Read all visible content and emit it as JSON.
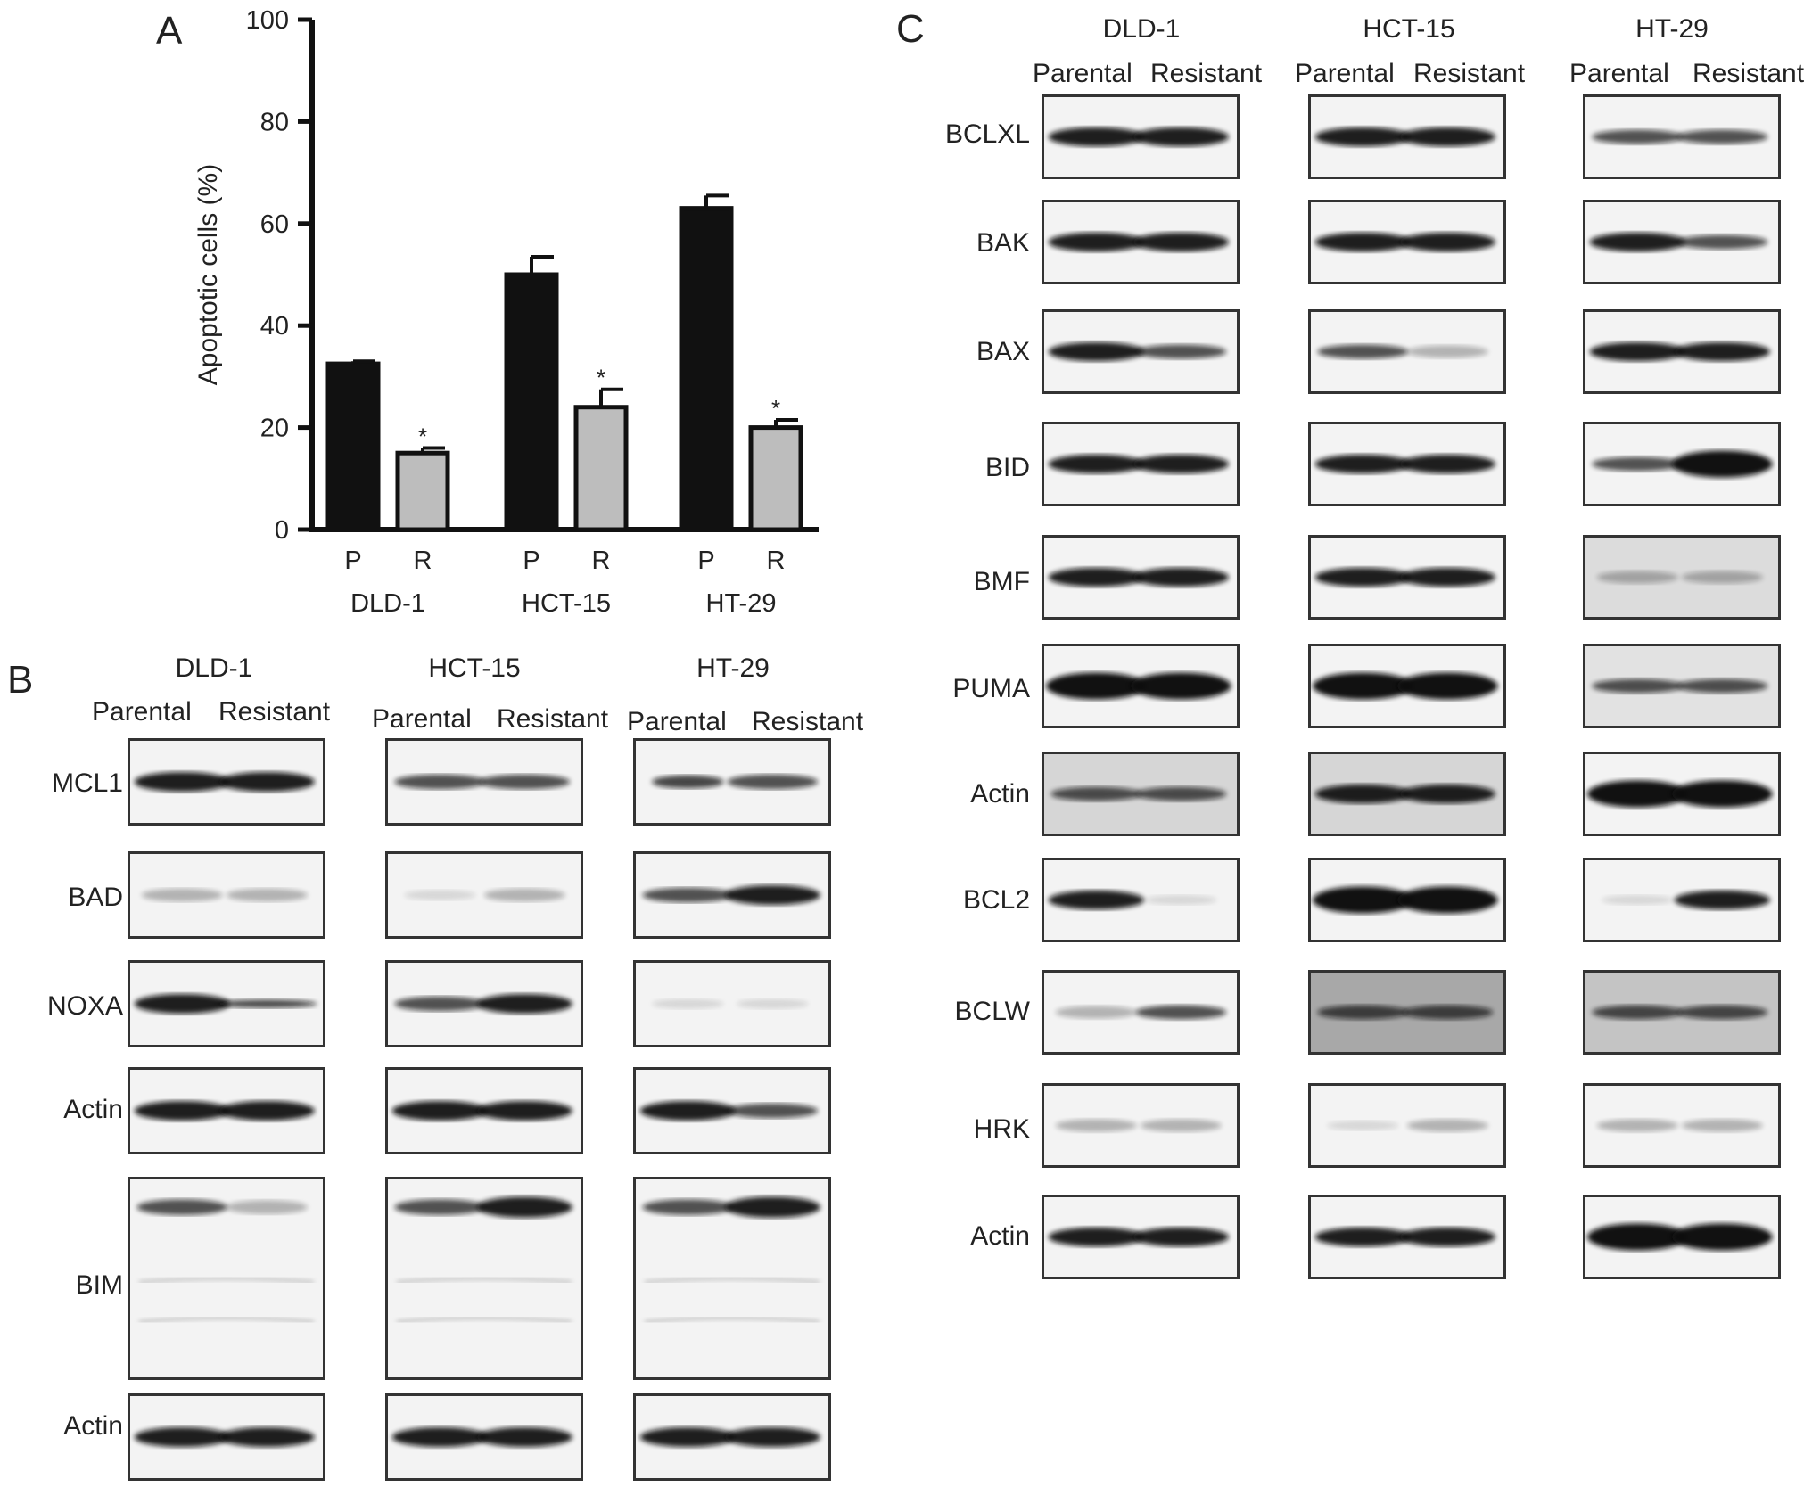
{
  "panels": {
    "a": "A",
    "b": "B",
    "c": "C"
  },
  "chart_data": {
    "type": "bar",
    "ylabel": "Apoptotic cells (%)",
    "ylim": [
      0,
      100
    ],
    "yticks": [
      "0",
      "20",
      "40",
      "60",
      "80",
      "100"
    ],
    "groups": [
      "DLD-1",
      "HCT-15",
      "HT-29"
    ],
    "categories": [
      "P",
      "R",
      "P",
      "R",
      "P",
      "R"
    ],
    "values": [
      32.5,
      15,
      50,
      24,
      63,
      20
    ],
    "errors": [
      0.5,
      1.0,
      3.5,
      3.5,
      2.5,
      1.5
    ],
    "significance": [
      "",
      "*",
      "",
      "*",
      "",
      "*"
    ],
    "colors": [
      "#111111",
      "#bdbdbd",
      "#111111",
      "#bdbdbd",
      "#111111",
      "#bdbdbd"
    ]
  },
  "panel_b": {
    "cell_lines": [
      "DLD-1",
      "HCT-15",
      "HT-29"
    ],
    "conditions": [
      "Parental",
      "Resistant"
    ],
    "proteins": [
      "MCL1",
      "BAD",
      "NOXA",
      "Actin",
      "BIM",
      "Actin"
    ]
  },
  "panel_c": {
    "cell_lines": [
      "DLD-1",
      "HCT-15",
      "HT-29"
    ],
    "conditions": [
      "Parental",
      "Resistant"
    ],
    "proteins": [
      "BCLXL",
      "BAK",
      "BAX",
      "BID",
      "BMF",
      "PUMA",
      "Actin",
      "BCL2",
      "BCLW",
      "HRK",
      "Actin"
    ]
  }
}
